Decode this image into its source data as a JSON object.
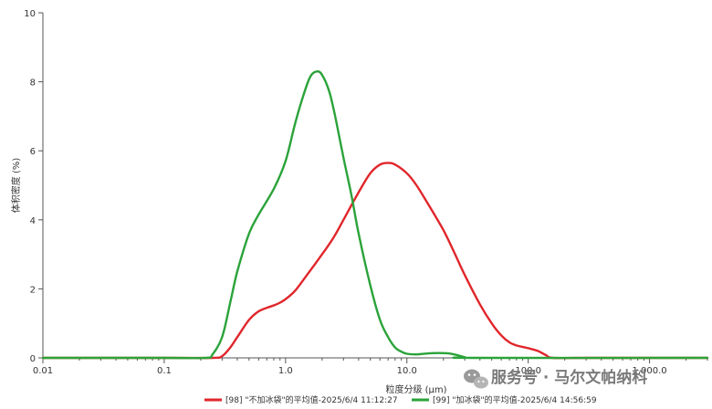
{
  "chart_data": {
    "type": "line",
    "xlabel": "粒度分级 (μm)",
    "ylabel": "体积密度 (%)",
    "x_scale": "log",
    "xlim": [
      0.01,
      3000
    ],
    "ylim": [
      0,
      10
    ],
    "x_ticks": [
      {
        "value": 0.01,
        "label": "0.01"
      },
      {
        "value": 0.1,
        "label": "0.1"
      },
      {
        "value": 1,
        "label": "1.0"
      },
      {
        "value": 10,
        "label": "10.0"
      },
      {
        "value": 100,
        "label": "100.0"
      },
      {
        "value": 1000,
        "label": "1,000.0"
      }
    ],
    "y_ticks": [
      {
        "value": 0,
        "label": "0"
      },
      {
        "value": 2,
        "label": "2"
      },
      {
        "value": 4,
        "label": "4"
      },
      {
        "value": 6,
        "label": "6"
      },
      {
        "value": 8,
        "label": "8"
      },
      {
        "value": 10,
        "label": "10"
      }
    ],
    "grid": false,
    "legend_position": "bottom",
    "series": [
      {
        "name": "[98] \"不加冰袋\"的平均值-2025/6/4 11:12:27",
        "color": "#e0262b",
        "points": [
          [
            0.01,
            0
          ],
          [
            0.1,
            0
          ],
          [
            0.25,
            0
          ],
          [
            0.3,
            0.05
          ],
          [
            0.35,
            0.3
          ],
          [
            0.4,
            0.6
          ],
          [
            0.5,
            1.1
          ],
          [
            0.6,
            1.35
          ],
          [
            0.7,
            1.45
          ],
          [
            0.8,
            1.52
          ],
          [
            0.9,
            1.6
          ],
          [
            1.0,
            1.7
          ],
          [
            1.2,
            1.95
          ],
          [
            1.5,
            2.4
          ],
          [
            2.0,
            3.0
          ],
          [
            2.5,
            3.5
          ],
          [
            3.0,
            4.0
          ],
          [
            4.0,
            4.8
          ],
          [
            5.0,
            5.35
          ],
          [
            6.0,
            5.6
          ],
          [
            7.0,
            5.65
          ],
          [
            8.0,
            5.6
          ],
          [
            10.0,
            5.35
          ],
          [
            12.0,
            5.0
          ],
          [
            15.0,
            4.45
          ],
          [
            20.0,
            3.7
          ],
          [
            25.0,
            3.0
          ],
          [
            30.0,
            2.4
          ],
          [
            40.0,
            1.55
          ],
          [
            50.0,
            1.0
          ],
          [
            60.0,
            0.65
          ],
          [
            70.0,
            0.45
          ],
          [
            80.0,
            0.36
          ],
          [
            100.0,
            0.28
          ],
          [
            120.0,
            0.2
          ],
          [
            140.0,
            0.08
          ],
          [
            160.0,
            0
          ],
          [
            300.0,
            0
          ],
          [
            3000.0,
            0
          ]
        ]
      },
      {
        "name": "[99] \"加冰袋\"的平均值-2025/6/4 14:56:59",
        "color": "#2ba33a",
        "points": [
          [
            0.01,
            0
          ],
          [
            0.1,
            0
          ],
          [
            0.22,
            0
          ],
          [
            0.25,
            0.1
          ],
          [
            0.3,
            0.6
          ],
          [
            0.35,
            1.6
          ],
          [
            0.4,
            2.5
          ],
          [
            0.5,
            3.6
          ],
          [
            0.6,
            4.15
          ],
          [
            0.8,
            4.9
          ],
          [
            1.0,
            5.7
          ],
          [
            1.2,
            6.8
          ],
          [
            1.4,
            7.6
          ],
          [
            1.6,
            8.15
          ],
          [
            1.8,
            8.3
          ],
          [
            2.0,
            8.2
          ],
          [
            2.3,
            7.7
          ],
          [
            2.6,
            6.9
          ],
          [
            3.0,
            5.8
          ],
          [
            3.5,
            4.7
          ],
          [
            4.0,
            3.6
          ],
          [
            5.0,
            2.1
          ],
          [
            6.0,
            1.1
          ],
          [
            7.0,
            0.6
          ],
          [
            8.0,
            0.3
          ],
          [
            9.0,
            0.18
          ],
          [
            10.0,
            0.12
          ],
          [
            12.0,
            0.1
          ],
          [
            15.0,
            0.13
          ],
          [
            18.0,
            0.14
          ],
          [
            22.0,
            0.13
          ],
          [
            26.0,
            0.08
          ],
          [
            30.0,
            0.02
          ],
          [
            35.0,
            0
          ],
          [
            3000.0,
            0
          ]
        ]
      }
    ]
  },
  "watermark": {
    "icon": "wechat-icon",
    "text": "服务号 · 马尔文帕纳科"
  }
}
